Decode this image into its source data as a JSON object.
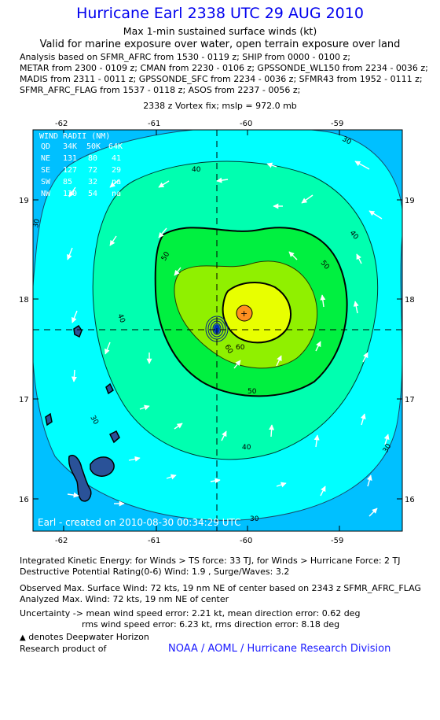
{
  "header": {
    "title": "Hurricane Earl 2338 UTC 29 AUG 2010",
    "subtitle": "Max 1-min sustained surface winds (kt)",
    "valid": "Valid for marine exposure over water, open terrain exposure over land",
    "analysis_lines": [
      "Analysis based on SFMR_AFRC from 1530 - 0119 z; SHIP from 0000 - 0100 z;",
      "METAR from 2300 - 0109 z; CMAN from 2230 - 0106 z; GPSSONDE_WL150 from 2234 - 0036 z;",
      "MADIS from 2311 - 0011 z; GPSSONDE_SFC from 2234 - 0036 z; SFMR43 from 1952 - 0111 z;",
      "SFMR_AFRC_FLAG from 1537 - 0118 z; ASOS from 2237 - 0056 z;"
    ],
    "vortex": "2338 z Vortex fix; mslp = 972.0 mb"
  },
  "map": {
    "lon_ticks": [
      "-62",
      "-61",
      "-60",
      "-59"
    ],
    "lat_ticks": [
      "19",
      "18",
      "17",
      "16"
    ],
    "contour_labels": [
      "30",
      "40",
      "50",
      "60"
    ],
    "wind_radii": {
      "title": "WIND RADII (NM)",
      "header": [
        "QD",
        "34K",
        "50K",
        "64K"
      ],
      "rows": [
        [
          "NE",
          "131",
          "80",
          "41"
        ],
        [
          "SE",
          "127",
          "72",
          "29"
        ],
        [
          "SW",
          "85",
          "32",
          "na"
        ],
        [
          "NW",
          "130",
          "54",
          "na"
        ]
      ]
    },
    "credit": "Earl - created on 2010-08-30 00:34:29 UTC",
    "colors": {
      "c20": "#00c0ff",
      "c30": "#00ffff",
      "c40": "#00ffb0",
      "c50": "#00f040",
      "c60": "#90f000",
      "c64": "#e8ff00",
      "c70": "#ff9020",
      "land": "#2a5298"
    }
  },
  "footer": {
    "ike": "Integrated Kinetic Energy:  for Winds > TS force: 33 TJ,  for Winds > Hurricane Force: 2 TJ",
    "dpr": "Destructive Potential Rating(0-6)   Wind: 1.9 , Surge/Waves: 3.2",
    "obs": "Observed Max. Surface Wind: 72 kts, 19 nm NE of center based on 2343 z SFMR_AFRC_FLAG",
    "analyzed": "Analyzed Max. Wind: 72 kts, 19 nm NE of center",
    "uncert1": "Uncertainty -> mean wind speed error: 2.21 kt,   mean direction error: 0.62 deg",
    "uncert2": "rms wind speed error: 6.23 kt,   rms direction error: 8.18 deg",
    "legend": "denotes Deepwater Horizon",
    "research": "Research product of",
    "org": "NOAA / AOML / Hurricane Research Division"
  }
}
